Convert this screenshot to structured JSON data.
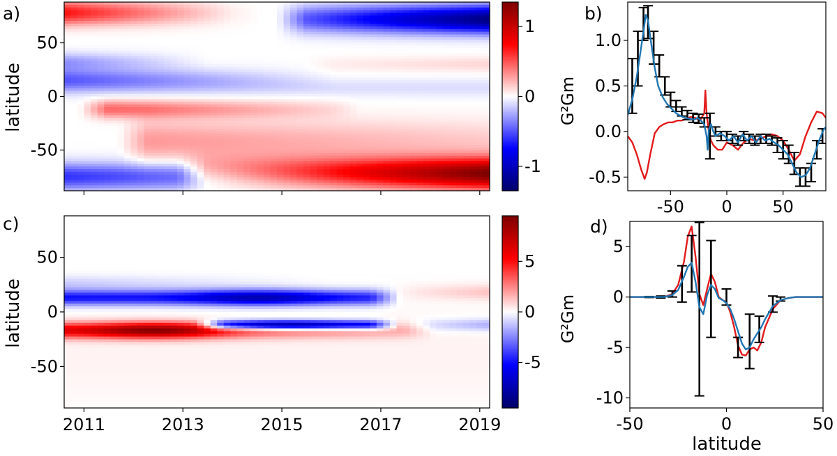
{
  "figure": {
    "panels": [
      "a)",
      "b)",
      "c)",
      "d)"
    ]
  },
  "chart_data": [
    {
      "panel": "a)",
      "type": "heatmap",
      "xlim": [
        2010.6,
        2019.2
      ],
      "ylim": [
        -88,
        88
      ],
      "ylabel": "latitude",
      "xticks": [
        2011,
        2013,
        2015,
        2017,
        2019
      ],
      "xticklabels_shown": false,
      "yticks": [
        50,
        0,
        -50
      ],
      "yticklabels": [
        "50",
        "0",
        "-50"
      ],
      "colorbar": {
        "min": -1.35,
        "max": 1.35,
        "ticks": [
          1,
          0,
          -1
        ],
        "ticklabels": [
          "1",
          "0",
          "-1"
        ],
        "colormap": "seismic (blue-white-red)"
      },
      "structures": [
        {
          "t0": 2010.6,
          "t1": 2019.2,
          "lat": -75,
          "w": 9,
          "v0": -0.6,
          "v1": 0.0,
          "tc": 2014.0
        },
        {
          "t0": 2013.5,
          "t1": 2019.2,
          "lat": -72,
          "w": 10,
          "v0": 0.5,
          "v1": 1.35
        },
        {
          "t0": 2012.3,
          "t1": 2019.2,
          "lat": -42,
          "w": 14,
          "v0": 0.3,
          "v1": 0.15
        },
        {
          "t0": 2011.5,
          "t1": 2016.0,
          "lat": -12,
          "w": 6,
          "v0": 0.45,
          "v1": 0.1
        },
        {
          "t0": 2010.6,
          "t1": 2019.2,
          "lat": 8,
          "w": 6,
          "v0": -0.1,
          "v1": -0.1
        },
        {
          "t0": 2010.6,
          "t1": 2015.5,
          "lat": 16,
          "w": 7,
          "v0": -0.45,
          "v1": -0.05
        },
        {
          "t0": 2010.6,
          "t1": 2013.5,
          "lat": 32,
          "w": 6,
          "v0": -0.3,
          "v1": 0.0
        },
        {
          "t0": 2010.6,
          "t1": 2014.0,
          "lat": 78,
          "w": 8,
          "v0": 0.7,
          "v1": 0.05
        },
        {
          "t0": 2015.5,
          "t1": 2019.2,
          "lat": 72,
          "w": 9,
          "v0": -0.5,
          "v1": -1.25
        },
        {
          "t0": 2016.0,
          "t1": 2019.2,
          "lat": 30,
          "w": 5,
          "v0": 0.05,
          "v1": 0.12
        }
      ]
    },
    {
      "panel": "b)",
      "type": "line",
      "xlim": [
        -88,
        88
      ],
      "ylim": [
        -0.65,
        1.42
      ],
      "ylabel": "G²Gm",
      "xticks": [
        -50,
        0,
        50
      ],
      "xticklabels": [
        "-50",
        "0",
        "50"
      ],
      "yticks": [
        1.0,
        0.5,
        0.0,
        -0.5
      ],
      "yticklabels": [
        "1.0",
        "0.5",
        "0.0",
        "-0.5"
      ],
      "series": [
        {
          "color": "#e31a1c",
          "x": [
            -88,
            -84,
            -80,
            -76,
            -73,
            -71,
            -68,
            -64,
            -60,
            -56,
            -52,
            -48,
            -44,
            -40,
            -36,
            -32,
            -28,
            -24,
            -20,
            -19,
            -18,
            -16,
            -14,
            -12,
            -8,
            -4,
            0,
            5,
            10,
            15,
            20,
            25,
            30,
            35,
            40,
            45,
            50,
            55,
            60,
            65,
            70,
            75,
            80,
            85,
            88
          ],
          "y": [
            -0.05,
            -0.12,
            -0.25,
            -0.42,
            -0.52,
            -0.45,
            -0.25,
            -0.02,
            0.05,
            0.08,
            0.1,
            0.1,
            0.12,
            0.12,
            0.14,
            0.16,
            0.15,
            0.12,
            0.2,
            0.45,
            0.2,
            0.0,
            -0.1,
            -0.15,
            -0.2,
            -0.2,
            -0.12,
            -0.15,
            -0.2,
            -0.12,
            -0.08,
            -0.1,
            -0.08,
            -0.05,
            -0.03,
            -0.05,
            -0.1,
            -0.2,
            -0.32,
            -0.25,
            -0.05,
            0.1,
            0.22,
            0.2,
            0.15
          ]
        },
        {
          "color": "#1f77b4",
          "x": [
            -88,
            -84,
            -80,
            -77,
            -74,
            -72,
            -70,
            -67,
            -64,
            -61,
            -57,
            -53,
            -49,
            -45,
            -41,
            -37,
            -33,
            -29,
            -26,
            -23,
            -20,
            -18,
            -17,
            -16,
            -14,
            -12,
            -10,
            -6,
            -2,
            2,
            6,
            10,
            14,
            18,
            22,
            26,
            30,
            34,
            38,
            42,
            46,
            50,
            54,
            58,
            62,
            66,
            70,
            74,
            78,
            82,
            86,
            88
          ],
          "y": [
            0.18,
            0.35,
            0.6,
            0.85,
            1.1,
            1.28,
            1.22,
            0.95,
            0.7,
            0.5,
            0.38,
            0.3,
            0.25,
            0.2,
            0.17,
            0.15,
            0.14,
            0.13,
            0.15,
            0.12,
            0.08,
            -0.05,
            -0.2,
            0.02,
            0.08,
            0.0,
            -0.05,
            -0.02,
            -0.05,
            -0.1,
            -0.05,
            -0.12,
            -0.03,
            -0.1,
            -0.05,
            -0.12,
            -0.05,
            -0.1,
            -0.08,
            -0.12,
            -0.15,
            -0.2,
            -0.25,
            -0.35,
            -0.45,
            -0.5,
            -0.48,
            -0.4,
            -0.25,
            -0.1,
            0.02,
            0.05
          ]
        },
        {
          "color": "#000000",
          "kind": "errorbars",
          "x": [
            -84,
            -79,
            -74,
            -70,
            -65,
            -60,
            -55,
            -50,
            -45,
            -40,
            -35,
            -30,
            -25,
            -20,
            -15,
            -10,
            -5,
            0,
            5,
            10,
            15,
            20,
            25,
            30,
            35,
            40,
            45,
            50,
            55,
            60,
            65,
            70,
            75,
            80,
            85
          ],
          "y": [
            0.5,
            0.8,
            1.18,
            1.2,
            0.92,
            0.72,
            0.5,
            0.35,
            0.28,
            0.22,
            0.18,
            0.15,
            0.14,
            0.1,
            -0.05,
            0.0,
            -0.05,
            -0.05,
            -0.08,
            -0.1,
            -0.05,
            -0.08,
            -0.1,
            -0.08,
            -0.08,
            -0.1,
            -0.15,
            -0.2,
            -0.25,
            -0.35,
            -0.5,
            -0.5,
            -0.45,
            -0.2,
            -0.05
          ],
          "err": [
            0.3,
            0.3,
            0.18,
            0.18,
            0.18,
            0.12,
            0.1,
            0.08,
            0.06,
            0.05,
            0.05,
            0.05,
            0.05,
            0.05,
            0.25,
            0.05,
            0.05,
            0.05,
            0.05,
            0.05,
            0.05,
            0.05,
            0.05,
            0.05,
            0.05,
            0.05,
            0.08,
            0.1,
            0.1,
            0.12,
            0.1,
            0.1,
            0.1,
            0.1,
            0.08
          ]
        }
      ]
    },
    {
      "panel": "c)",
      "type": "heatmap",
      "xlim": [
        2010.6,
        2019.2
      ],
      "ylim": [
        -88,
        88
      ],
      "ylabel": "latitude",
      "xticks": [
        2011,
        2013,
        2015,
        2017,
        2019
      ],
      "xticklabels": [
        "2011",
        "2013",
        "2015",
        "2017",
        "2019"
      ],
      "yticks": [
        50,
        0,
        -50
      ],
      "yticklabels": [
        "50",
        "0",
        "-50"
      ],
      "colorbar": {
        "min": -9.5,
        "max": 9.5,
        "ticks": [
          5,
          0,
          -5
        ],
        "ticklabels": [
          "5",
          "0",
          "-5"
        ],
        "colormap": "seismic (blue-white-red)"
      },
      "structures": [
        {
          "t0": 2010.6,
          "t1": 2016.8,
          "lat": 13,
          "w": 5,
          "v0": -5.0,
          "v1": -4.5,
          "peak": -7.5,
          "tpeak": 2014.5
        },
        {
          "t0": 2010.6,
          "t1": 2016.0,
          "lat": 26,
          "w": 5,
          "v0": -1.0,
          "v1": 0.0
        },
        {
          "t0": 2010.6,
          "t1": 2017.5,
          "lat": -17,
          "w": 5,
          "v0": 5.5,
          "v1": 1.5,
          "peak": 9.0,
          "tpeak": 2012.4
        },
        {
          "t0": 2013.8,
          "t1": 2016.8,
          "lat": -12,
          "w": 3,
          "v0": -6.0,
          "v1": -6.0,
          "peak": -9.0,
          "tpeak": 2015.0
        },
        {
          "t0": 2017.8,
          "t1": 2019.2,
          "lat": 18,
          "w": 5,
          "v0": 0.5,
          "v1": 1.2
        },
        {
          "t0": 2018.0,
          "t1": 2019.2,
          "lat": -12,
          "w": 4,
          "v0": -0.8,
          "v1": -1.8
        },
        {
          "t0": 2010.6,
          "t1": 2019.2,
          "lat": -40,
          "w": 30,
          "v0": 0.25,
          "v1": 0.25
        }
      ]
    },
    {
      "panel": "d)",
      "type": "line",
      "xlim": [
        -50,
        50
      ],
      "ylim": [
        -11,
        7.5
      ],
      "xlabel": "latitude",
      "ylabel": "G²Gm",
      "xticks": [
        -50,
        0,
        50
      ],
      "xticklabels": [
        "-50",
        "0",
        "50"
      ],
      "yticks": [
        5,
        0,
        -5,
        -10
      ],
      "yticklabels": [
        "5",
        "0",
        "-5",
        "-10"
      ],
      "series": [
        {
          "color": "#e31a1c",
          "x": [
            -50,
            -40,
            -32,
            -28,
            -25,
            -22,
            -20,
            -18,
            -16,
            -14,
            -12,
            -10,
            -8,
            -6,
            -4,
            -2,
            0,
            2,
            4,
            6,
            8,
            10,
            12,
            14,
            16,
            18,
            20,
            24,
            28,
            32,
            36,
            40,
            50
          ],
          "y": [
            0,
            0,
            0,
            0.3,
            1.2,
            3.5,
            6.0,
            7.0,
            4.0,
            0.3,
            -0.8,
            0.8,
            2.3,
            1.5,
            0.0,
            -0.3,
            -0.5,
            -1.5,
            -3.0,
            -4.8,
            -5.7,
            -5.8,
            -5.2,
            -5.0,
            -5.3,
            -4.5,
            -3.0,
            -1.2,
            -0.3,
            -0.1,
            0,
            0,
            0
          ]
        },
        {
          "color": "#1f77b4",
          "x": [
            -50,
            -40,
            -32,
            -28,
            -25,
            -22,
            -20,
            -18,
            -16,
            -14,
            -12,
            -10,
            -8,
            -6,
            -4,
            -2,
            0,
            2,
            4,
            6,
            8,
            10,
            12,
            14,
            16,
            18,
            20,
            24,
            28,
            32,
            36,
            40,
            50
          ],
          "y": [
            0,
            0,
            0,
            0.2,
            0.7,
            2.0,
            3.0,
            3.4,
            1.5,
            -1.0,
            -1.7,
            0.2,
            1.2,
            0.8,
            -0.1,
            -0.3,
            -0.6,
            -1.2,
            -2.2,
            -3.4,
            -4.6,
            -5.2,
            -5.0,
            -4.2,
            -3.6,
            -3.0,
            -2.2,
            -0.9,
            -0.3,
            -0.1,
            0,
            0,
            0
          ]
        },
        {
          "color": "#000000",
          "kind": "errorbars",
          "x": [
            -40,
            -34,
            -28,
            -23,
            -18,
            -14,
            -8,
            0,
            6,
            12,
            17,
            24,
            28
          ],
          "y": [
            0,
            0,
            0.3,
            1.3,
            3.3,
            -1.2,
            0.8,
            0,
            -5.0,
            -4.4,
            -3.2,
            -0.7,
            -0.2
          ],
          "err": [
            0.05,
            0.1,
            0.3,
            1.8,
            2.8,
            8.6,
            4.8,
            0.8,
            1.0,
            2.7,
            1.3,
            0.8,
            0.2
          ]
        }
      ]
    }
  ]
}
